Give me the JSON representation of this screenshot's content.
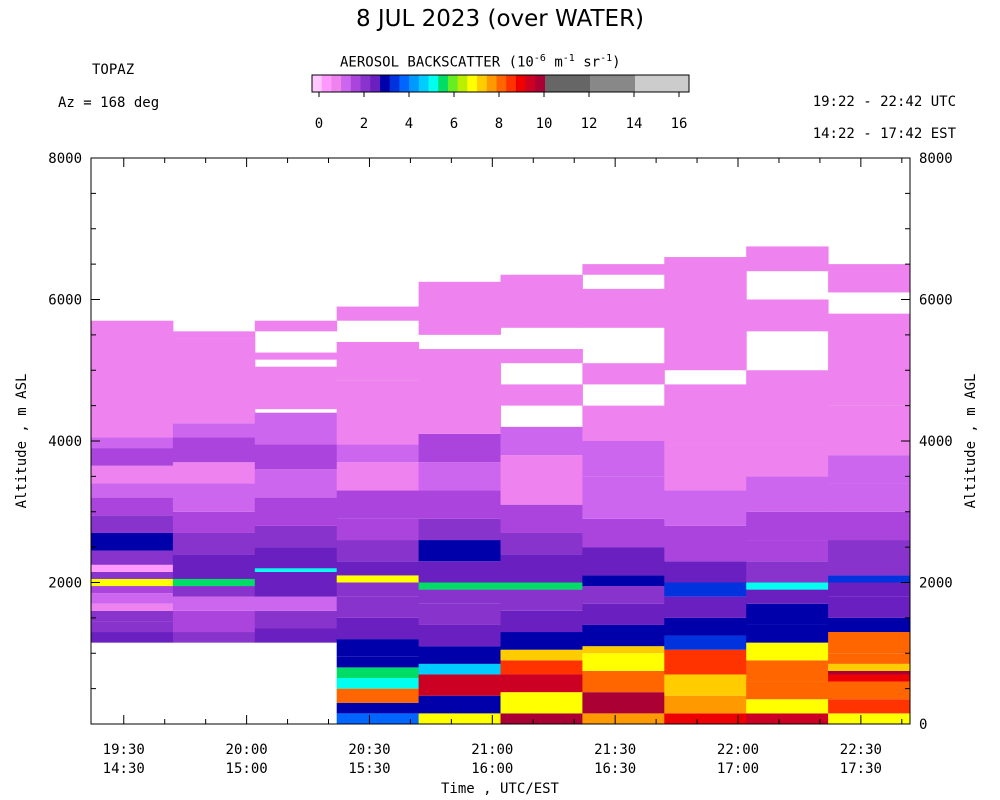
{
  "header": {
    "title": "8 JUL 2023 (over WATER)",
    "site": "TOPAZ",
    "azimuth": "Az = 168 deg",
    "utc_range": "19:22 - 22:42 UTC",
    "est_range": "14:22 - 17:42 EST"
  },
  "colorbar": {
    "title_prefix": "AEROSOL BACKSCATTER (10",
    "title_exp1": "-6",
    "title_mid1": " m",
    "title_exp2": "-1",
    "title_mid2": " sr",
    "title_exp3": "-1",
    "title_suffix": ")",
    "ticks": [
      "0",
      "2",
      "4",
      "6",
      "8",
      "10",
      "12",
      "14",
      "16"
    ],
    "colors": [
      "#ffc8ff",
      "#ff99ff",
      "#ee82ee",
      "#cc66ee",
      "#aa44dd",
      "#8833cc",
      "#6a1fc0",
      "#0000aa",
      "#0033dd",
      "#0066ff",
      "#0099ff",
      "#00ccff",
      "#00ffee",
      "#00dd66",
      "#66ee22",
      "#bbee00",
      "#ffff00",
      "#ffcc00",
      "#ff9900",
      "#ff6600",
      "#ff3300",
      "#ee0000",
      "#cc0022",
      "#aa0033"
    ],
    "gray_colors": [
      "#666666",
      "#888888",
      "#aaaaaa",
      "#cccccc"
    ]
  },
  "axes": {
    "y_left_label": "Altitude , m ASL",
    "y_right_label": "Altitude , m AGL",
    "x_label": "Time , UTC/EST",
    "y_left_ticks": [
      "2000",
      "4000",
      "6000",
      "8000"
    ],
    "y_right_ticks": [
      "0",
      "2000",
      "4000",
      "6000",
      "8000"
    ],
    "x_ticks": [
      {
        "utc": "19:30",
        "est": "14:30"
      },
      {
        "utc": "20:00",
        "est": "15:00"
      },
      {
        "utc": "20:30",
        "est": "15:30"
      },
      {
        "utc": "21:00",
        "est": "16:00"
      },
      {
        "utc": "21:30",
        "est": "16:30"
      },
      {
        "utc": "22:00",
        "est": "17:00"
      },
      {
        "utc": "22:30",
        "est": "17:30"
      }
    ]
  },
  "chart_data": {
    "type": "heatmap",
    "title": "8 JUL 2023 (over WATER)",
    "xlabel": "Time , UTC/EST",
    "ylabel": "Altitude , m ASL",
    "y2label": "Altitude , m AGL",
    "colorbar_label": "AEROSOL BACKSCATTER (10^-6 m^-1 sr^-1)",
    "x_range_utc_minutes": [
      1162,
      1362
    ],
    "x_start_utc": "19:22",
    "x_end_utc": "22:42",
    "ylim": [
      0,
      8000
    ],
    "value_range": [
      0,
      16
    ],
    "columns": [
      {
        "start": "19:22",
        "end": "19:42",
        "bands": [
          [
            1150,
            1300,
            2.8
          ],
          [
            1300,
            1450,
            2.3
          ],
          [
            1450,
            1600,
            2.3
          ],
          [
            1600,
            1700,
            1.2
          ],
          [
            1700,
            1850,
            1.4
          ],
          [
            1850,
            1950,
            2.0
          ],
          [
            1950,
            2050,
            6.8
          ],
          [
            2050,
            2150,
            2.4
          ],
          [
            2150,
            2250,
            0.8
          ],
          [
            2250,
            2450,
            2.4
          ],
          [
            2450,
            2700,
            3.2
          ],
          [
            2700,
            2950,
            2.4
          ],
          [
            2950,
            3200,
            2.0
          ],
          [
            3200,
            3400,
            1.6
          ],
          [
            3400,
            3650,
            1.2
          ],
          [
            3650,
            3900,
            2.0
          ],
          [
            3900,
            4050,
            1.6
          ],
          [
            4050,
            5700,
            1.0
          ]
        ]
      },
      {
        "start": "19:42",
        "end": "20:02",
        "bands": [
          [
            1150,
            1300,
            2.4
          ],
          [
            1300,
            1600,
            2.0
          ],
          [
            1600,
            1800,
            1.4
          ],
          [
            1800,
            1950,
            2.2
          ],
          [
            1950,
            2050,
            5.5
          ],
          [
            2050,
            2400,
            2.6
          ],
          [
            2400,
            2700,
            2.2
          ],
          [
            2700,
            3000,
            2.0
          ],
          [
            3000,
            3400,
            1.6
          ],
          [
            3400,
            3700,
            1.2
          ],
          [
            3700,
            4050,
            2.0
          ],
          [
            4050,
            4250,
            1.6
          ],
          [
            4250,
            5300,
            1.0
          ],
          [
            5300,
            5450,
            1.2
          ],
          [
            5450,
            5550,
            1.0
          ]
        ]
      },
      {
        "start": "20:02",
        "end": "20:22",
        "bands": [
          [
            1150,
            1350,
            2.6
          ],
          [
            1350,
            1600,
            2.4
          ],
          [
            1600,
            1800,
            1.6
          ],
          [
            1800,
            2150,
            2.8
          ],
          [
            2150,
            2200,
            5.0
          ],
          [
            2200,
            2500,
            2.6
          ],
          [
            2500,
            2800,
            2.2
          ],
          [
            2800,
            3200,
            2.0
          ],
          [
            3200,
            3600,
            1.6
          ],
          [
            3600,
            3950,
            2.0
          ],
          [
            3950,
            4400,
            1.4
          ],
          [
            4450,
            5050,
            1.0
          ],
          [
            5150,
            5250,
            1.0
          ],
          [
            5550,
            5700,
            1.0
          ]
        ]
      },
      {
        "start": "20:22",
        "end": "20:42",
        "bands": [
          [
            0,
            150,
            4.0
          ],
          [
            150,
            300,
            3.2
          ],
          [
            300,
            500,
            8.0
          ],
          [
            500,
            650,
            5.2
          ],
          [
            650,
            800,
            5.6
          ],
          [
            800,
            950,
            3.2
          ],
          [
            950,
            1200,
            3.0
          ],
          [
            1200,
            1500,
            2.8
          ],
          [
            1500,
            1800,
            2.4
          ],
          [
            1800,
            2000,
            2.2
          ],
          [
            2000,
            2100,
            6.8
          ],
          [
            2100,
            2300,
            2.6
          ],
          [
            2300,
            2600,
            2.4
          ],
          [
            2600,
            2900,
            2.0
          ],
          [
            2900,
            3300,
            1.8
          ],
          [
            3300,
            3700,
            1.2
          ],
          [
            3700,
            3950,
            1.6
          ],
          [
            3950,
            4850,
            1.0
          ],
          [
            4850,
            5400,
            1.0
          ],
          [
            5700,
            5900,
            1.0
          ]
        ]
      },
      {
        "start": "20:42",
        "end": "21:02",
        "bands": [
          [
            0,
            150,
            7.0
          ],
          [
            150,
            400,
            3.0
          ],
          [
            400,
            700,
            9.2
          ],
          [
            700,
            850,
            4.6
          ],
          [
            850,
            1100,
            3.2
          ],
          [
            1100,
            1400,
            2.8
          ],
          [
            1400,
            1700,
            2.4
          ],
          [
            1700,
            1900,
            2.2
          ],
          [
            1900,
            2000,
            5.5
          ],
          [
            2000,
            2300,
            2.6
          ],
          [
            2300,
            2600,
            3.0
          ],
          [
            2600,
            2900,
            2.4
          ],
          [
            2900,
            3300,
            2.0
          ],
          [
            3300,
            3700,
            1.6
          ],
          [
            3700,
            4100,
            1.8
          ],
          [
            4100,
            5300,
            1.0
          ],
          [
            5500,
            6250,
            1.0
          ]
        ]
      },
      {
        "start": "21:02",
        "end": "21:22",
        "bands": [
          [
            0,
            150,
            9.8
          ],
          [
            150,
            450,
            7.0
          ],
          [
            450,
            700,
            9.2
          ],
          [
            700,
            900,
            8.4
          ],
          [
            900,
            1050,
            7.2
          ],
          [
            1050,
            1300,
            3.0
          ],
          [
            1300,
            1600,
            2.6
          ],
          [
            1600,
            1900,
            2.2
          ],
          [
            1900,
            2000,
            5.5
          ],
          [
            2000,
            2400,
            2.8
          ],
          [
            2400,
            2700,
            2.4
          ],
          [
            2700,
            3100,
            2.0
          ],
          [
            3100,
            3800,
            1.2
          ],
          [
            3800,
            4200,
            1.6
          ],
          [
            4500,
            4800,
            1.0
          ],
          [
            5100,
            5300,
            1.0
          ],
          [
            5600,
            6350,
            1.0
          ]
        ]
      },
      {
        "start": "21:22",
        "end": "21:42",
        "bands": [
          [
            0,
            150,
            7.6
          ],
          [
            150,
            450,
            9.8
          ],
          [
            450,
            750,
            8.0
          ],
          [
            750,
            1000,
            6.8
          ],
          [
            1000,
            1100,
            7.2
          ],
          [
            1100,
            1400,
            3.0
          ],
          [
            1400,
            1700,
            2.6
          ],
          [
            1700,
            1950,
            2.2
          ],
          [
            1950,
            2100,
            3.2
          ],
          [
            2100,
            2500,
            2.6
          ],
          [
            2500,
            2900,
            2.0
          ],
          [
            2900,
            3500,
            1.4
          ],
          [
            3500,
            4000,
            1.6
          ],
          [
            4000,
            4500,
            1.2
          ],
          [
            4800,
            5100,
            1.0
          ],
          [
            5600,
            6150,
            1.0
          ],
          [
            6350,
            6500,
            1.0
          ]
        ]
      },
      {
        "start": "21:42",
        "end": "22:02",
        "bands": [
          [
            0,
            150,
            9.0
          ],
          [
            150,
            400,
            7.8
          ],
          [
            400,
            700,
            7.2
          ],
          [
            700,
            1050,
            8.6
          ],
          [
            1050,
            1250,
            3.4
          ],
          [
            1250,
            1500,
            3.0
          ],
          [
            1500,
            1800,
            2.6
          ],
          [
            1800,
            2000,
            3.4
          ],
          [
            2000,
            2300,
            2.6
          ],
          [
            2300,
            2800,
            2.0
          ],
          [
            2800,
            3300,
            1.4
          ],
          [
            3300,
            3950,
            1.2
          ],
          [
            3950,
            4800,
            1.0
          ],
          [
            5000,
            6600,
            1.0
          ]
        ]
      },
      {
        "start": "22:02",
        "end": "22:22",
        "bands": [
          [
            0,
            150,
            9.4
          ],
          [
            150,
            350,
            7.0
          ],
          [
            350,
            600,
            8.2
          ],
          [
            600,
            900,
            8.2
          ],
          [
            900,
            1150,
            6.8
          ],
          [
            1150,
            1400,
            3.2
          ],
          [
            1400,
            1700,
            3.0
          ],
          [
            1700,
            1900,
            2.6
          ],
          [
            1900,
            2000,
            5.2
          ],
          [
            2000,
            2300,
            2.4
          ],
          [
            2300,
            2600,
            2.0
          ],
          [
            2600,
            3000,
            1.8
          ],
          [
            3000,
            3500,
            1.4
          ],
          [
            3500,
            3950,
            1.2
          ],
          [
            3950,
            5000,
            1.0
          ],
          [
            5550,
            6000,
            1.0
          ],
          [
            6400,
            6750,
            1.0
          ]
        ]
      },
      {
        "start": "22:22",
        "end": "22:42",
        "bands": [
          [
            0,
            150,
            7.0
          ],
          [
            150,
            350,
            8.6
          ],
          [
            350,
            600,
            8.2
          ],
          [
            600,
            700,
            9.0
          ],
          [
            700,
            750,
            9.6
          ],
          [
            750,
            850,
            7.4
          ],
          [
            850,
            1000,
            8.2
          ],
          [
            1000,
            1300,
            8.2
          ],
          [
            1300,
            1500,
            3.0
          ],
          [
            1500,
            1800,
            2.6
          ],
          [
            1800,
            2000,
            2.8
          ],
          [
            2000,
            2100,
            3.6
          ],
          [
            2100,
            2600,
            2.2
          ],
          [
            2600,
            3000,
            2.0
          ],
          [
            3000,
            3400,
            1.6
          ],
          [
            3400,
            3800,
            1.4
          ],
          [
            3800,
            4500,
            1.2
          ],
          [
            4500,
            5800,
            1.0
          ],
          [
            6100,
            6500,
            1.0
          ]
        ]
      }
    ]
  }
}
